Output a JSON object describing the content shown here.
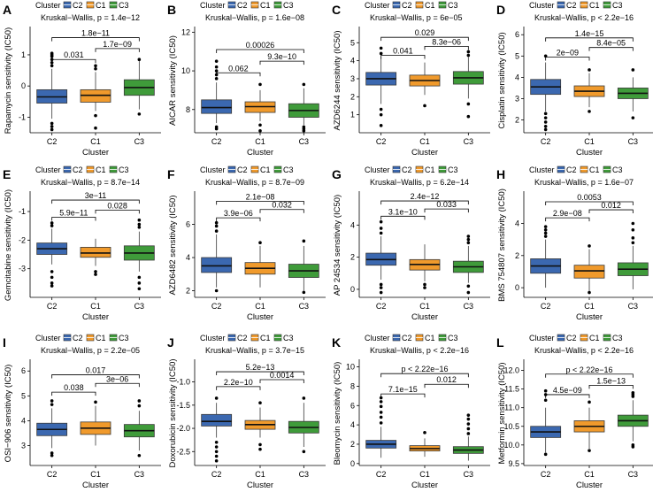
{
  "colors": {
    "C2": "#3b68b0",
    "C1": "#f09a2c",
    "C3": "#3f9b3a",
    "box_stroke": "#3a3a3a"
  },
  "legend": {
    "title": "Cluster",
    "entries": [
      "C2",
      "C1",
      "C3"
    ]
  },
  "chart_data": [
    {
      "type": "box",
      "panel": "A",
      "ylabel": "Rapamycin sensitivity (IC50)",
      "xlabel": "Cluster",
      "kw": "Kruskal−Wallis, p = 1.4e−12",
      "ylim": [
        -1.5,
        1.85
      ],
      "yticks": [
        -1,
        0,
        1
      ],
      "categories": [
        "C2",
        "C1",
        "C3"
      ],
      "boxes": [
        {
          "min": -1.05,
          "q1": -0.55,
          "median": -0.35,
          "q3": -0.12,
          "max": 0.55,
          "outliers": [
            0.65,
            0.75,
            0.85,
            0.95,
            1.0,
            1.05,
            -1.2,
            -1.3,
            -1.4
          ]
        },
        {
          "min": -0.8,
          "q1": -0.52,
          "median": -0.3,
          "q3": -0.12,
          "max": 0.45,
          "outliers": [
            0.65,
            0.55,
            -0.95,
            -1.35
          ]
        },
        {
          "min": -0.75,
          "q1": -0.3,
          "median": -0.05,
          "q3": 0.2,
          "max": 0.8,
          "outliers": [
            0.85,
            -0.9
          ]
        }
      ],
      "comparisons": [
        {
          "pair": [
            0,
            1
          ],
          "label": "0.031",
          "y": 0.85
        },
        {
          "pair": [
            1,
            2
          ],
          "label": "1.7e−09",
          "y": 1.2
        },
        {
          "pair": [
            0,
            2
          ],
          "label": "1.8e−11",
          "y": 1.55
        }
      ]
    },
    {
      "type": "box",
      "panel": "B",
      "ylabel": "AICAR sensitivity (IC50)",
      "xlabel": "Cluster",
      "kw": "Kruskal−Wallis, p = 1.6e−08",
      "ylim": [
        6.8,
        12.2
      ],
      "yticks": [
        8,
        10,
        12
      ],
      "categories": [
        "C2",
        "C1",
        "C3"
      ],
      "boxes": [
        {
          "min": 7.3,
          "q1": 7.8,
          "median": 8.1,
          "q3": 8.5,
          "max": 9.4,
          "outliers": [
            9.6,
            9.8,
            10.0,
            10.2,
            10.5,
            7.1,
            7.0
          ]
        },
        {
          "min": 7.4,
          "q1": 7.85,
          "median": 8.15,
          "q3": 8.4,
          "max": 9.0,
          "outliers": [
            9.3,
            7.2,
            6.9
          ]
        },
        {
          "min": 7.2,
          "q1": 7.6,
          "median": 7.95,
          "q3": 8.3,
          "max": 9.1,
          "outliers": [
            7.1,
            7.0,
            6.9,
            9.3
          ]
        }
      ],
      "comparisons": [
        {
          "pair": [
            0,
            1
          ],
          "label": "0.062",
          "y": 9.9
        },
        {
          "pair": [
            1,
            2
          ],
          "label": "9.3e−10",
          "y": 10.5
        },
        {
          "pair": [
            0,
            2
          ],
          "label": "0.00026",
          "y": 11.1
        }
      ]
    },
    {
      "type": "box",
      "panel": "C",
      "ylabel": "AZD6244 sensitivity (IC50)",
      "xlabel": "Cluster",
      "kw": "Kruskal−Wallis, p = 6e−05",
      "ylim": [
        0,
        5.8
      ],
      "yticks": [
        1,
        2,
        3,
        4,
        5
      ],
      "categories": [
        "C2",
        "C1",
        "C3"
      ],
      "boxes": [
        {
          "min": 1.6,
          "q1": 2.65,
          "median": 3.0,
          "q3": 3.35,
          "max": 4.2,
          "outliers": [
            4.4,
            4.7,
            1.3,
            1.0,
            0.4
          ]
        },
        {
          "min": 2.1,
          "q1": 2.6,
          "median": 2.9,
          "q3": 3.2,
          "max": 3.9,
          "outliers": [
            1.5
          ]
        },
        {
          "min": 1.9,
          "q1": 2.7,
          "median": 3.05,
          "q3": 3.4,
          "max": 4.2,
          "outliers": [
            4.5,
            4.3,
            1.6,
            0.9
          ]
        }
      ],
      "comparisons": [
        {
          "pair": [
            0,
            1
          ],
          "label": "0.041",
          "y": 4.3
        },
        {
          "pair": [
            1,
            2
          ],
          "label": "8.3e−06",
          "y": 4.8
        },
        {
          "pair": [
            0,
            2
          ],
          "label": "0.029",
          "y": 5.3
        }
      ]
    },
    {
      "type": "box",
      "panel": "D",
      "ylabel": "Cisplatin sensitivity (IC50)",
      "xlabel": "Cluster",
      "kw": "Kruskal−Wallis, p < 2.2e−16",
      "ylim": [
        1.4,
        6.3
      ],
      "yticks": [
        2,
        3,
        4,
        5,
        6
      ],
      "categories": [
        "C2",
        "C1",
        "C3"
      ],
      "boxes": [
        {
          "min": 2.4,
          "q1": 3.2,
          "median": 3.55,
          "q3": 3.9,
          "max": 4.7,
          "outliers": [
            5.0,
            2.3,
            2.1,
            1.9,
            1.7,
            1.55
          ]
        },
        {
          "min": 2.6,
          "q1": 3.1,
          "median": 3.35,
          "q3": 3.6,
          "max": 4.2,
          "outliers": [
            4.35,
            2.4
          ]
        },
        {
          "min": 2.4,
          "q1": 3.0,
          "median": 3.25,
          "q3": 3.5,
          "max": 4.0,
          "outliers": [
            4.35,
            2.1
          ]
        }
      ],
      "comparisons": [
        {
          "pair": [
            0,
            1
          ],
          "label": "2e−09",
          "y": 4.95
        },
        {
          "pair": [
            1,
            2
          ],
          "label": "8.4e−05",
          "y": 5.4
        },
        {
          "pair": [
            0,
            2
          ],
          "label": "1.4e−15",
          "y": 5.85
        }
      ]
    },
    {
      "type": "box",
      "panel": "E",
      "ylabel": "Gemcitabine sensitivity (IC50)",
      "xlabel": "Cluster",
      "kw": "Kruskal−Wallis, p = 8.7e−14",
      "ylim": [
        -4.0,
        -0.35
      ],
      "yticks": [
        -3,
        -2,
        -1
      ],
      "categories": [
        "C2",
        "C1",
        "C3"
      ],
      "boxes": [
        {
          "min": -2.85,
          "q1": -2.5,
          "median": -2.3,
          "q3": -2.1,
          "max": -1.6,
          "outliers": [
            -1.4,
            -1.5,
            -3.1,
            -3.3,
            -3.5,
            -3.6
          ]
        },
        {
          "min": -2.9,
          "q1": -2.6,
          "median": -2.45,
          "q3": -2.25,
          "max": -1.95,
          "outliers": [
            -3.1,
            -3.2
          ]
        },
        {
          "min": -3.1,
          "q1": -2.7,
          "median": -2.45,
          "q3": -2.2,
          "max": -1.7,
          "outliers": [
            -1.3,
            -1.45,
            -1.55,
            -3.3,
            -3.5,
            -3.7
          ]
        }
      ],
      "comparisons": [
        {
          "pair": [
            0,
            1
          ],
          "label": "5.9e−11",
          "y": -1.2
        },
        {
          "pair": [
            1,
            2
          ],
          "label": "0.028",
          "y": -0.95
        },
        {
          "pair": [
            0,
            2
          ],
          "label": "3e−11",
          "y": -0.6
        }
      ]
    },
    {
      "type": "box",
      "panel": "F",
      "ylabel": "AZD6482 sensitivity (IC50)",
      "xlabel": "Cluster",
      "kw": "Kruskal−Wallis, p = 8.7e−09",
      "ylim": [
        1.6,
        7.9
      ],
      "yticks": [
        2,
        4,
        6
      ],
      "categories": [
        "C2",
        "C1",
        "C3"
      ],
      "boxes": [
        {
          "min": 2.2,
          "q1": 3.1,
          "median": 3.5,
          "q3": 4.0,
          "max": 5.4,
          "outliers": [
            5.6,
            5.9,
            6.1,
            2.0
          ]
        },
        {
          "min": 2.2,
          "q1": 3.0,
          "median": 3.35,
          "q3": 3.7,
          "max": 4.7,
          "outliers": [
            4.9
          ]
        },
        {
          "min": 2.0,
          "q1": 2.8,
          "median": 3.2,
          "q3": 3.6,
          "max": 4.7,
          "outliers": [
            5.0,
            1.9
          ]
        }
      ],
      "comparisons": [
        {
          "pair": [
            0,
            1
          ],
          "label": "3.9e−06",
          "y": 6.4
        },
        {
          "pair": [
            1,
            2
          ],
          "label": "0.032",
          "y": 6.9
        },
        {
          "pair": [
            0,
            2
          ],
          "label": "2.1e−08",
          "y": 7.4
        }
      ]
    },
    {
      "type": "box",
      "panel": "G",
      "ylabel": "AP 24534 sensitivity (IC50)",
      "xlabel": "Cluster",
      "kw": "Kruskal−Wallis, p = 6.2e−14",
      "ylim": [
        -0.5,
        6.0
      ],
      "yticks": [
        0,
        2,
        4
      ],
      "categories": [
        "C2",
        "C1",
        "C3"
      ],
      "boxes": [
        {
          "min": 0.6,
          "q1": 1.5,
          "median": 1.85,
          "q3": 2.25,
          "max": 3.3,
          "outliers": [
            3.5,
            3.8,
            4.2,
            0.3,
            0.1,
            -0.2
          ]
        },
        {
          "min": 0.5,
          "q1": 1.2,
          "median": 1.55,
          "q3": 1.85,
          "max": 2.8,
          "outliers": [
            0.3,
            0.1
          ]
        },
        {
          "min": 0.4,
          "q1": 1.05,
          "median": 1.4,
          "q3": 1.75,
          "max": 2.7,
          "outliers": [
            2.9,
            3.1,
            3.3,
            0.2,
            -0.2
          ]
        }
      ],
      "comparisons": [
        {
          "pair": [
            0,
            1
          ],
          "label": "3.1e−10",
          "y": 4.55
        },
        {
          "pair": [
            1,
            2
          ],
          "label": "0.033",
          "y": 5.0
        },
        {
          "pair": [
            0,
            2
          ],
          "label": "2.4e−12",
          "y": 5.5
        }
      ]
    },
    {
      "type": "box",
      "panel": "H",
      "ylabel": "BMS 754807 sensitivity (IC50)",
      "xlabel": "Cluster",
      "kw": "Kruskal−Wallis, p = 1.6e−07",
      "ylim": [
        -0.6,
        5.9
      ],
      "yticks": [
        0,
        2,
        4
      ],
      "categories": [
        "C2",
        "C1",
        "C3"
      ],
      "boxes": [
        {
          "min": 0.0,
          "q1": 0.9,
          "median": 1.35,
          "q3": 1.8,
          "max": 3.0,
          "outliers": [
            3.2,
            3.4,
            3.6,
            3.8
          ]
        },
        {
          "min": -0.2,
          "q1": 0.6,
          "median": 1.05,
          "q3": 1.4,
          "max": 2.4,
          "outliers": [
            2.6,
            -0.3
          ]
        },
        {
          "min": -0.1,
          "q1": 0.75,
          "median": 1.15,
          "q3": 1.55,
          "max": 2.6,
          "outliers": [
            2.8,
            3.1,
            3.6,
            4.0
          ]
        }
      ],
      "comparisons": [
        {
          "pair": [
            0,
            1
          ],
          "label": "2.9e−08",
          "y": 4.35
        },
        {
          "pair": [
            1,
            2
          ],
          "label": "0.012",
          "y": 4.85
        },
        {
          "pair": [
            0,
            2
          ],
          "label": "0.0053",
          "y": 5.35
        }
      ]
    },
    {
      "type": "box",
      "panel": "I",
      "ylabel": "OSI−906 sensitivity (IC50)",
      "xlabel": "Cluster",
      "kw": "Kruskal−Wallis, p = 2.2e−05",
      "ylim": [
        2.2,
        6.4
      ],
      "yticks": [
        3,
        4,
        5,
        6
      ],
      "categories": [
        "C2",
        "C1",
        "C3"
      ],
      "boxes": [
        {
          "min": 2.9,
          "q1": 3.4,
          "median": 3.65,
          "q3": 3.9,
          "max": 4.5,
          "outliers": [
            4.65,
            4.8,
            2.7,
            2.6
          ]
        },
        {
          "min": 3.0,
          "q1": 3.45,
          "median": 3.7,
          "q3": 3.95,
          "max": 4.6,
          "outliers": [
            4.75
          ]
        },
        {
          "min": 2.8,
          "q1": 3.35,
          "median": 3.6,
          "q3": 3.85,
          "max": 4.4,
          "outliers": [
            4.6,
            4.8,
            2.6
          ]
        }
      ],
      "comparisons": [
        {
          "pair": [
            0,
            1
          ],
          "label": "0.038",
          "y": 5.15
        },
        {
          "pair": [
            1,
            2
          ],
          "label": "3e−06",
          "y": 5.5
        },
        {
          "pair": [
            0,
            2
          ],
          "label": "0.017",
          "y": 5.85
        }
      ]
    },
    {
      "type": "box",
      "panel": "J",
      "ylabel": "Doxorubicin sensitivity (IC50)",
      "xlabel": "Cluster",
      "kw": "Kruskal−Wallis, p = 3.7e−15",
      "ylim": [
        -2.8,
        -0.55
      ],
      "yticks": [
        -2.5,
        -2.0,
        -1.5,
        -1.0
      ],
      "categories": [
        "C2",
        "C1",
        "C3"
      ],
      "boxes": [
        {
          "min": -2.2,
          "q1": -1.95,
          "median": -1.85,
          "q3": -1.7,
          "max": -1.45,
          "outliers": [
            -1.35,
            -2.3,
            -2.4,
            -2.5,
            -2.6,
            -2.7
          ]
        },
        {
          "min": -2.2,
          "q1": -2.02,
          "median": -1.92,
          "q3": -1.83,
          "max": -1.55,
          "outliers": [
            -1.45,
            -2.35,
            -2.45
          ]
        },
        {
          "min": -2.4,
          "q1": -2.1,
          "median": -1.98,
          "q3": -1.85,
          "max": -1.45,
          "outliers": [
            -1.35,
            -2.5
          ]
        }
      ],
      "comparisons": [
        {
          "pair": [
            0,
            1
          ],
          "label": "2.2e−10",
          "y": -1.1
        },
        {
          "pair": [
            1,
            2
          ],
          "label": "0.0014",
          "y": -0.95
        },
        {
          "pair": [
            0,
            2
          ],
          "label": "5.2e−13",
          "y": -0.78
        }
      ]
    },
    {
      "type": "box",
      "panel": "K",
      "ylabel": "Bleomycin sensitivity (IC50)",
      "xlabel": "Cluster",
      "kw": "Kruskal−Wallis, p < 2.2e−16",
      "ylim": [
        -0.2,
        10.6
      ],
      "yticks": [
        0,
        2,
        4,
        6,
        8,
        10
      ],
      "categories": [
        "C2",
        "C1",
        "C3"
      ],
      "boxes": [
        {
          "min": 0.6,
          "q1": 1.6,
          "median": 2.0,
          "q3": 2.4,
          "max": 3.8,
          "outliers": [
            4.2,
            4.8,
            5.3,
            5.9,
            6.4,
            6.8
          ]
        },
        {
          "min": 0.7,
          "q1": 1.3,
          "median": 1.55,
          "q3": 1.85,
          "max": 2.6,
          "outliers": [
            3.2
          ]
        },
        {
          "min": 0.3,
          "q1": 1.05,
          "median": 1.4,
          "q3": 1.75,
          "max": 2.8,
          "outliers": [
            3.1,
            3.6,
            4.1,
            4.6,
            5.0
          ]
        }
      ],
      "comparisons": [
        {
          "pair": [
            0,
            1
          ],
          "label": "7.1e−15",
          "y": 7.2
        },
        {
          "pair": [
            1,
            2
          ],
          "label": "0.012",
          "y": 8.2
        },
        {
          "pair": [
            0,
            2
          ],
          "label": "p < 2.22e−16",
          "y": 9.3
        }
      ]
    },
    {
      "type": "box",
      "panel": "L",
      "ylabel": "Metformin sensitivity (IC50)",
      "xlabel": "Cluster",
      "kw": "Kruskal−Wallis, p < 2.2e−16",
      "ylim": [
        9.45,
        12.25
      ],
      "yticks": [
        9.5,
        10.0,
        10.5,
        11.0,
        11.5,
        12.0
      ],
      "categories": [
        "C2",
        "C1",
        "C3"
      ],
      "boxes": [
        {
          "min": 9.8,
          "q1": 10.2,
          "median": 10.35,
          "q3": 10.5,
          "max": 11.0,
          "outliers": [
            11.2,
            11.35,
            11.45,
            9.75
          ]
        },
        {
          "min": 9.9,
          "q1": 10.35,
          "median": 10.5,
          "q3": 10.65,
          "max": 11.0,
          "outliers": [
            11.15,
            9.85
          ]
        },
        {
          "min": 10.1,
          "q1": 10.5,
          "median": 10.65,
          "q3": 10.8,
          "max": 11.2,
          "outliers": [
            11.3,
            11.35,
            11.4,
            10.0,
            9.95
          ]
        }
      ],
      "comparisons": [
        {
          "pair": [
            0,
            1
          ],
          "label": "4.5e−09",
          "y": 11.35
        },
        {
          "pair": [
            1,
            2
          ],
          "label": "1.5e−13",
          "y": 11.6
        },
        {
          "pair": [
            0,
            2
          ],
          "label": "p < 2.22e−16",
          "y": 11.9
        }
      ]
    }
  ]
}
